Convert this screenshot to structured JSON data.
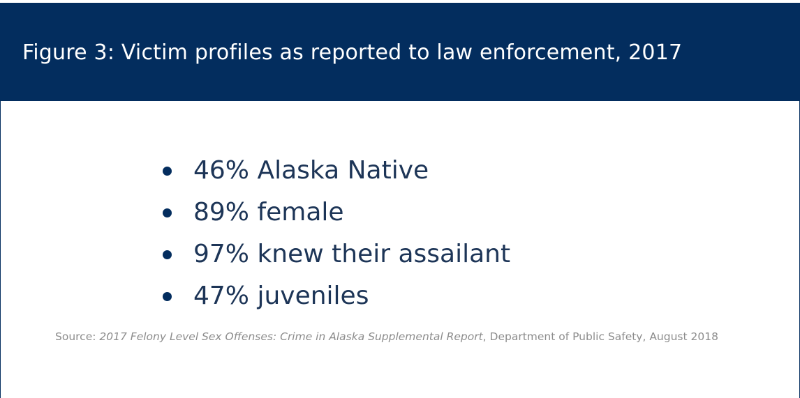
{
  "header": {
    "title": "Figure 3: Victim profiles as reported to law enforcement, 2017"
  },
  "bullets": [
    "46% Alaska Native",
    "89% female",
    "97% knew their assailant",
    "47% juveniles"
  ],
  "source": {
    "prefix": "Source:",
    "title": "2017 Felony Level Sex Offenses: Crime in Alaska Supplemental Report",
    "suffix": ", Department of Public Safety, August 2018"
  }
}
